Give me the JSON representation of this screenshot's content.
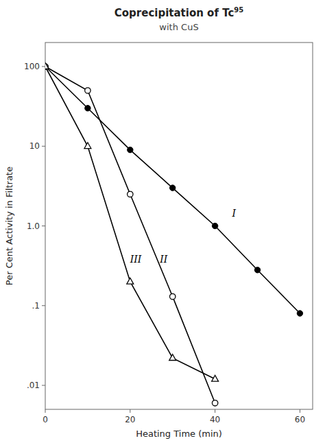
{
  "chart_data": {
    "type": "line",
    "title": "Coprecipitation of Tc",
    "annotations": [
      {
        "text": "95"
      }
    ],
    "subtitle": "with CuS",
    "x_label": "Heating Time (min)",
    "y_label": "Per Cent Activity in Filtrate",
    "log": "y",
    "grid": false,
    "xlim": [
      0,
      63
    ],
    "ylim": [
      0.005,
      200
    ],
    "xticks": [
      0,
      20,
      40,
      60
    ],
    "yticks": [
      {
        "value": 0.01,
        "label": ".01"
      },
      {
        "value": 0.1,
        "label": ".1"
      },
      {
        "value": 1.0,
        "label": "1.0"
      },
      10,
      100
    ],
    "series": [
      {
        "name": "I",
        "color": "#000000",
        "marker": "circle",
        "x": [
          0,
          10,
          20,
          30,
          40,
          50,
          60
        ],
        "values": [
          100,
          30.0,
          9.0,
          3.0,
          1.0,
          0.28,
          0.08
        ],
        "label_x": 44,
        "label_y": 1.3
      },
      {
        "name": "II",
        "color": "#000000",
        "marker": "open_circle",
        "x": [
          0,
          10,
          20,
          30,
          40
        ],
        "values": [
          100,
          50.0,
          2.5,
          0.13,
          0.006
        ],
        "label_x": 27,
        "label_y": 0.35
      },
      {
        "name": "III",
        "color": "#000000",
        "marker": "open_triangle",
        "x": [
          0,
          10,
          20,
          30,
          40
        ],
        "values": [
          100,
          10.0,
          0.2,
          0.022,
          0.012
        ],
        "label_x": 20,
        "label_y": 0.35
      }
    ]
  }
}
